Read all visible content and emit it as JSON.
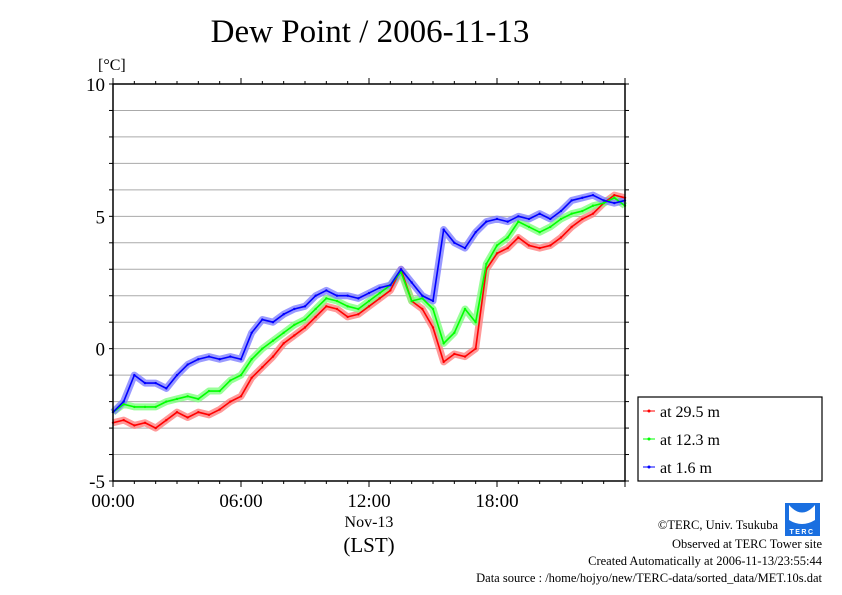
{
  "chart_data": {
    "type": "line",
    "title": "Dew Point / 2006-11-13",
    "ylabel": "[°C]",
    "xlabel": "(LST)",
    "date_label": "Nov-13",
    "ylim": [
      -5,
      10
    ],
    "xlim_hours": [
      0,
      24
    ],
    "yticks": [
      {
        "v": 10,
        "label": "10"
      },
      {
        "v": 5,
        "label": "5"
      },
      {
        "v": 0,
        "label": "0"
      },
      {
        "v": -5,
        "label": "-5"
      }
    ],
    "xticks": [
      {
        "h": 0,
        "label": "00:00"
      },
      {
        "h": 6,
        "label": "06:00"
      },
      {
        "h": 12,
        "label": "12:00"
      },
      {
        "h": 18,
        "label": "18:00"
      }
    ],
    "grid": true,
    "legend_position": "right-bottom-outside",
    "x_hours": [
      0,
      0.5,
      1,
      1.5,
      2,
      2.5,
      3,
      3.5,
      4,
      4.5,
      5,
      5.5,
      6,
      6.5,
      7,
      7.5,
      8,
      8.5,
      9,
      9.5,
      10,
      10.5,
      11,
      11.5,
      12,
      12.5,
      13,
      13.5,
      14,
      14.5,
      15,
      15.5,
      16,
      16.5,
      17,
      17.5,
      18,
      18.5,
      19,
      19.5,
      20,
      20.5,
      21,
      21.5,
      22,
      22.5,
      23,
      23.5,
      24
    ],
    "series": [
      {
        "name": "at 29.5 m",
        "color": "#ff0000",
        "halo": "#ff8080",
        "values": [
          -2.8,
          -2.7,
          -2.9,
          -2.8,
          -3.0,
          -2.7,
          -2.4,
          -2.6,
          -2.4,
          -2.5,
          -2.3,
          -2.0,
          -1.8,
          -1.1,
          -0.7,
          -0.3,
          0.2,
          0.5,
          0.8,
          1.2,
          1.6,
          1.5,
          1.2,
          1.3,
          1.6,
          1.9,
          2.2,
          3.0,
          1.8,
          1.5,
          0.8,
          -0.5,
          -0.2,
          -0.3,
          0.0,
          3.0,
          3.6,
          3.8,
          4.2,
          3.9,
          3.8,
          3.9,
          4.2,
          4.6,
          4.9,
          5.1,
          5.5,
          5.8,
          5.7
        ]
      },
      {
        "name": "at 12.3 m",
        "color": "#00ff00",
        "halo": "#80ff80",
        "values": [
          -2.4,
          -2.1,
          -2.2,
          -2.2,
          -2.2,
          -2.0,
          -1.9,
          -1.8,
          -1.9,
          -1.6,
          -1.6,
          -1.2,
          -1.0,
          -0.4,
          0.0,
          0.3,
          0.6,
          0.9,
          1.1,
          1.5,
          1.9,
          1.8,
          1.6,
          1.5,
          1.8,
          2.1,
          2.4,
          2.9,
          1.8,
          1.9,
          1.5,
          0.2,
          0.6,
          1.5,
          1.0,
          3.2,
          3.9,
          4.2,
          4.8,
          4.6,
          4.4,
          4.6,
          4.9,
          5.1,
          5.2,
          5.4,
          5.5,
          5.7,
          5.4
        ]
      },
      {
        "name": "at 1.6 m",
        "color": "#0000ff",
        "halo": "#8080ff",
        "values": [
          -2.4,
          -2.0,
          -1.0,
          -1.3,
          -1.3,
          -1.5,
          -1.0,
          -0.6,
          -0.4,
          -0.3,
          -0.4,
          -0.3,
          -0.4,
          0.6,
          1.1,
          1.0,
          1.3,
          1.5,
          1.6,
          2.0,
          2.2,
          2.0,
          2.0,
          1.9,
          2.1,
          2.3,
          2.4,
          3.0,
          2.5,
          2.0,
          1.8,
          4.5,
          4.0,
          3.8,
          4.4,
          4.8,
          4.9,
          4.8,
          5.0,
          4.9,
          5.1,
          4.9,
          5.2,
          5.6,
          5.7,
          5.8,
          5.6,
          5.5,
          5.6
        ]
      }
    ]
  },
  "footer": {
    "copyright": "©TERC, Univ. Tsukuba",
    "observed": "Observed at TERC Tower site",
    "created": "Created Automatically at 2006-11-13/23:55:44",
    "source": "Data source : /home/hojyo/new/TERC-data/sorted_data/MET.10s.dat",
    "logo_text": "TERC"
  }
}
